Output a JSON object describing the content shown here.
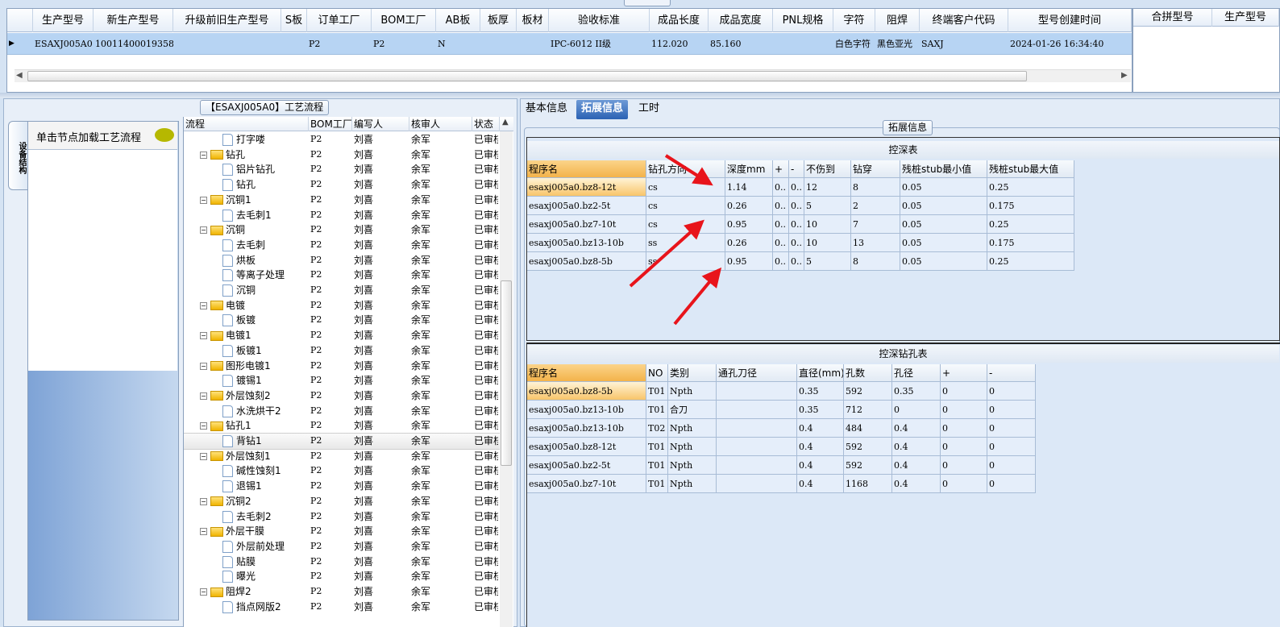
{
  "top_grid": {
    "columns": [
      "生产型号",
      "新生产型号",
      "升级前旧生产型号",
      "S板",
      "订单工厂",
      "BOM工厂",
      "AB板",
      "板厚",
      "板材",
      "验收标准",
      "成品长度",
      "成品宽度",
      "PNL规格",
      "字符",
      "阻焊",
      "终端客户代码",
      "型号创建时间"
    ],
    "rows": [
      [
        "ESAXJ005A0",
        "10011400019358",
        "",
        "",
        "P2",
        "P2",
        "N",
        "",
        "",
        "IPC-6012 II级",
        "112.020",
        "85.160",
        "",
        "白色字符",
        "黑色亚光",
        "SAXJ",
        "2024-01-26 16:34:40"
      ]
    ]
  },
  "side_grid": {
    "columns": [
      "合拼型号",
      "生产型号"
    ]
  },
  "process_panel": {
    "title": "【ESAXJ005A0】工艺流程",
    "vertical_tab": "设备结构",
    "nav_hint": "单击节点加载工艺流程",
    "tree_columns": [
      "流程",
      "BOM工厂",
      "编写人",
      "核审人",
      "状态"
    ],
    "tree_rows": [
      {
        "name": "打字喽",
        "level": 2,
        "folder": false,
        "bom": "P2",
        "writer": "刘喜",
        "reviewer": "余军",
        "status": "已审核"
      },
      {
        "name": "钻孔",
        "level": 1,
        "folder": true,
        "bom": "P2",
        "writer": "刘喜",
        "reviewer": "余军",
        "status": "已审核"
      },
      {
        "name": "铝片钻孔",
        "level": 2,
        "folder": false,
        "bom": "P2",
        "writer": "刘喜",
        "reviewer": "余军",
        "status": "已审核"
      },
      {
        "name": "钻孔",
        "level": 2,
        "folder": false,
        "bom": "P2",
        "writer": "刘喜",
        "reviewer": "余军",
        "status": "已审核"
      },
      {
        "name": "沉铜1",
        "level": 1,
        "folder": true,
        "bom": "P2",
        "writer": "刘喜",
        "reviewer": "余军",
        "status": "已审核"
      },
      {
        "name": "去毛刺1",
        "level": 2,
        "folder": false,
        "bom": "P2",
        "writer": "刘喜",
        "reviewer": "余军",
        "status": "已审核"
      },
      {
        "name": "沉铜",
        "level": 1,
        "folder": true,
        "bom": "P2",
        "writer": "刘喜",
        "reviewer": "余军",
        "status": "已审核"
      },
      {
        "name": "去毛刺",
        "level": 2,
        "folder": false,
        "bom": "P2",
        "writer": "刘喜",
        "reviewer": "余军",
        "status": "已审核"
      },
      {
        "name": "烘板",
        "level": 2,
        "folder": false,
        "bom": "P2",
        "writer": "刘喜",
        "reviewer": "余军",
        "status": "已审核"
      },
      {
        "name": "等离子处理",
        "level": 2,
        "folder": false,
        "bom": "P2",
        "writer": "刘喜",
        "reviewer": "余军",
        "status": "已审核"
      },
      {
        "name": "沉铜",
        "level": 2,
        "folder": false,
        "bom": "P2",
        "writer": "刘喜",
        "reviewer": "余军",
        "status": "已审核"
      },
      {
        "name": "电镀",
        "level": 1,
        "folder": true,
        "bom": "P2",
        "writer": "刘喜",
        "reviewer": "余军",
        "status": "已审核"
      },
      {
        "name": "板镀",
        "level": 2,
        "folder": false,
        "bom": "P2",
        "writer": "刘喜",
        "reviewer": "余军",
        "status": "已审核"
      },
      {
        "name": "电镀1",
        "level": 1,
        "folder": true,
        "bom": "P2",
        "writer": "刘喜",
        "reviewer": "余军",
        "status": "已审核"
      },
      {
        "name": "板镀1",
        "level": 2,
        "folder": false,
        "bom": "P2",
        "writer": "刘喜",
        "reviewer": "余军",
        "status": "已审核"
      },
      {
        "name": "图形电镀1",
        "level": 1,
        "folder": true,
        "bom": "P2",
        "writer": "刘喜",
        "reviewer": "余军",
        "status": "已审核"
      },
      {
        "name": "镀锡1",
        "level": 2,
        "folder": false,
        "bom": "P2",
        "writer": "刘喜",
        "reviewer": "余军",
        "status": "已审核"
      },
      {
        "name": "外层蚀刻2",
        "level": 1,
        "folder": true,
        "bom": "P2",
        "writer": "刘喜",
        "reviewer": "余军",
        "status": "已审核"
      },
      {
        "name": "水洗烘干2",
        "level": 2,
        "folder": false,
        "bom": "P2",
        "writer": "刘喜",
        "reviewer": "余军",
        "status": "已审核"
      },
      {
        "name": "钻孔1",
        "level": 1,
        "folder": true,
        "bom": "P2",
        "writer": "刘喜",
        "reviewer": "余军",
        "status": "已审核"
      },
      {
        "name": "背钻1",
        "level": 2,
        "folder": false,
        "bom": "P2",
        "writer": "刘喜",
        "reviewer": "余军",
        "status": "已审核",
        "selected": true
      },
      {
        "name": "外层蚀刻1",
        "level": 1,
        "folder": true,
        "bom": "P2",
        "writer": "刘喜",
        "reviewer": "余军",
        "status": "已审核"
      },
      {
        "name": "碱性蚀刻1",
        "level": 2,
        "folder": false,
        "bom": "P2",
        "writer": "刘喜",
        "reviewer": "余军",
        "status": "已审核"
      },
      {
        "name": "退锡1",
        "level": 2,
        "folder": false,
        "bom": "P2",
        "writer": "刘喜",
        "reviewer": "余军",
        "status": "已审核"
      },
      {
        "name": "沉铜2",
        "level": 1,
        "folder": true,
        "bom": "P2",
        "writer": "刘喜",
        "reviewer": "余军",
        "status": "已审核"
      },
      {
        "name": "去毛刺2",
        "level": 2,
        "folder": false,
        "bom": "P2",
        "writer": "刘喜",
        "reviewer": "余军",
        "status": "已审核"
      },
      {
        "name": "外层干膜",
        "level": 1,
        "folder": true,
        "bom": "P2",
        "writer": "刘喜",
        "reviewer": "余军",
        "status": "已审核"
      },
      {
        "name": "外层前处理",
        "level": 2,
        "folder": false,
        "bom": "P2",
        "writer": "刘喜",
        "reviewer": "余军",
        "status": "已审核"
      },
      {
        "name": "贴膜",
        "level": 2,
        "folder": false,
        "bom": "P2",
        "writer": "刘喜",
        "reviewer": "余军",
        "status": "已审核"
      },
      {
        "name": "曝光",
        "level": 2,
        "folder": false,
        "bom": "P2",
        "writer": "刘喜",
        "reviewer": "余军",
        "status": "已审核"
      },
      {
        "name": "阻焊2",
        "level": 1,
        "folder": true,
        "bom": "P2",
        "writer": "刘喜",
        "reviewer": "余军",
        "status": "已审核"
      },
      {
        "name": "挡点网版2",
        "level": 2,
        "folder": false,
        "bom": "P2",
        "writer": "刘喜",
        "reviewer": "余军",
        "status": "已审核"
      }
    ]
  },
  "detail_panel": {
    "tabs": [
      {
        "label": "基本信息"
      },
      {
        "label": "拓展信息",
        "active": true
      },
      {
        "label": "工时"
      }
    ],
    "group_title": "拓展信息",
    "depth_table": {
      "title": "控深表",
      "columns": [
        "程序名",
        "钻孔方向",
        "深度mm",
        "+",
        "-",
        "不伤到",
        "钻穿",
        "残桩stub最小值",
        "残桩stub最大值"
      ],
      "rows": [
        [
          "esaxj005a0.bz8-12t",
          "cs",
          "1.14",
          "0..",
          "0..",
          "12",
          "8",
          "0.05",
          "0.25"
        ],
        [
          "esaxj005a0.bz2-5t",
          "cs",
          "0.26",
          "0..",
          "0..",
          "5",
          "2",
          "0.05",
          "0.175"
        ],
        [
          "esaxj005a0.bz7-10t",
          "cs",
          "0.95",
          "0..",
          "0..",
          "10",
          "7",
          "0.05",
          "0.25"
        ],
        [
          "esaxj005a0.bz13-10b",
          "ss",
          "0.26",
          "0..",
          "0..",
          "10",
          "13",
          "0.05",
          "0.175"
        ],
        [
          "esaxj005a0.bz8-5b",
          "ss",
          "0.95",
          "0..",
          "0..",
          "5",
          "8",
          "0.05",
          "0.25"
        ]
      ]
    },
    "drill_table": {
      "title": "控深钻孔表",
      "columns": [
        "程序名",
        "NO",
        "类别",
        "通孔刀径",
        "直径(mm)",
        "孔数",
        "孔径",
        "+",
        "-"
      ],
      "rows": [
        [
          "esaxj005a0.bz8-5b",
          "T01",
          "Npth",
          "",
          "0.35",
          "592",
          "0.35",
          "0",
          "0"
        ],
        [
          "esaxj005a0.bz13-10b",
          "T01",
          "合刀",
          "",
          "0.35",
          "712",
          "0",
          "0",
          "0"
        ],
        [
          "esaxj005a0.bz13-10b",
          "T02",
          "Npth",
          "",
          "0.4",
          "484",
          "0.4",
          "0",
          "0"
        ],
        [
          "esaxj005a0.bz8-12t",
          "T01",
          "Npth",
          "",
          "0.4",
          "592",
          "0.4",
          "0",
          "0"
        ],
        [
          "esaxj005a0.bz2-5t",
          "T01",
          "Npth",
          "",
          "0.4",
          "592",
          "0.4",
          "0",
          "0"
        ],
        [
          "esaxj005a0.bz7-10t",
          "T01",
          "Npth",
          "",
          "0.4",
          "1168",
          "0.4",
          "0",
          "0"
        ]
      ]
    }
  },
  "colors": {
    "selection": "#b7d4f3",
    "accent_tab": "#2b62b4",
    "highlight_cell": "#f3b34a",
    "annotation_arrow": "#e8141b"
  }
}
